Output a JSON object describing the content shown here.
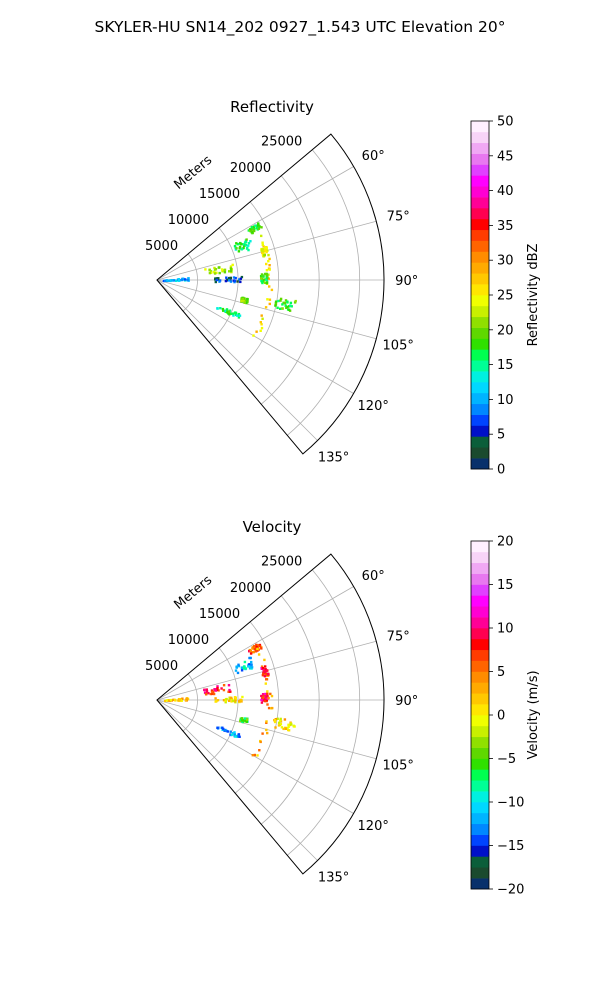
{
  "figure": {
    "suptitle": "SKYLER-HU  SN14_202  0927_1.543 UTC Elevation 20°"
  },
  "chart_data": [
    {
      "type": "heatmap",
      "projection": "polar-sector",
      "title": "Reflectivity",
      "range_label": "Meters",
      "range_ticks": [
        "5000",
        "10000",
        "15000",
        "20000",
        "25000"
      ],
      "range_tick_values": [
        5000,
        10000,
        15000,
        20000,
        25000
      ],
      "range_limit": [
        0,
        28000
      ],
      "azimuth_limit_deg": [
        50,
        140
      ],
      "azimuth_ticks": [
        "60°",
        "75°",
        "90°",
        "105°",
        "120°",
        "135°"
      ],
      "azimuth_tick_values": [
        60,
        75,
        90,
        105,
        120,
        135
      ],
      "grid": true,
      "colorbar": {
        "label": "Reflectivity dBZ",
        "vmin": 0,
        "vmax": 50,
        "ticks": [
          "0",
          "5",
          "10",
          "15",
          "20",
          "25",
          "30",
          "35",
          "40",
          "45",
          "50"
        ],
        "tick_values": [
          0,
          5,
          10,
          15,
          20,
          25,
          30,
          35,
          40,
          45,
          50
        ],
        "colors": [
          "#08306b",
          "#1a4a2e",
          "#0b5e3a",
          "#0010c8",
          "#0044ff",
          "#0088ff",
          "#00b4ff",
          "#00d8ff",
          "#00f0e0",
          "#00ff96",
          "#00ff50",
          "#30e000",
          "#5fd800",
          "#90e000",
          "#c8f000",
          "#f0ff00",
          "#ffe600",
          "#ffc800",
          "#ffaa00",
          "#ff8c00",
          "#ff6400",
          "#ff3c00",
          "#ff0000",
          "#ff0050",
          "#ff0096",
          "#ff00d2",
          "#ff00ff",
          "#e040ff",
          "#e878f0",
          "#f0a8f4",
          "#f8d4f8",
          "#fff0ff"
        ]
      },
      "echoes": [
        {
          "az": [
            84,
            89
          ],
          "r": [
            700,
            3800
          ],
          "value": 10
        },
        {
          "az": [
            76,
            83
          ],
          "r": [
            5800,
            9600
          ],
          "value": 22
        },
        {
          "az": [
            64,
            71
          ],
          "r": [
            10300,
            12600
          ],
          "value": 16
        },
        {
          "az": [
            60,
            63
          ],
          "r": [
            12800,
            14400
          ],
          "value": 18
        },
        {
          "az": [
            87,
            91
          ],
          "r": [
            7000,
            10400
          ],
          "value": 6
        },
        {
          "az": [
            98,
            103
          ],
          "r": [
            14500,
            17200
          ],
          "value": 18
        },
        {
          "az": [
            101,
            104
          ],
          "r": [
            10400,
            11300
          ],
          "value": 20
        },
        {
          "az": [
            112,
            115
          ],
          "r": [
            8000,
            11000
          ],
          "value": 16
        },
        {
          "az": [
            62,
            120
          ],
          "r": [
            13400,
            14100
          ],
          "value": 26
        },
        {
          "az": [
            86,
            91
          ],
          "r": [
            12700,
            13500
          ],
          "value": 18
        },
        {
          "az": [
            72,
            77
          ],
          "r": [
            13300,
            14000
          ],
          "value": 24
        }
      ]
    },
    {
      "type": "heatmap",
      "projection": "polar-sector",
      "title": "Velocity",
      "range_label": "Meters",
      "range_ticks": [
        "5000",
        "10000",
        "15000",
        "20000",
        "25000"
      ],
      "range_tick_values": [
        5000,
        10000,
        15000,
        20000,
        25000
      ],
      "range_limit": [
        0,
        28000
      ],
      "azimuth_limit_deg": [
        50,
        140
      ],
      "azimuth_ticks": [
        "60°",
        "75°",
        "90°",
        "105°",
        "120°",
        "135°"
      ],
      "azimuth_tick_values": [
        60,
        75,
        90,
        105,
        120,
        135
      ],
      "grid": true,
      "colorbar": {
        "label": "Velocity (m/s)",
        "vmin": -20,
        "vmax": 20,
        "ticks": [
          "−20",
          "−15",
          "−10",
          "−5",
          "0",
          "5",
          "10",
          "15",
          "20"
        ],
        "tick_values": [
          -20,
          -15,
          -10,
          -5,
          0,
          5,
          10,
          15,
          20
        ],
        "colors": [
          "#08306b",
          "#1a4a2e",
          "#0b5e3a",
          "#0010c8",
          "#0044ff",
          "#0088ff",
          "#00b4ff",
          "#00d8ff",
          "#00f0e0",
          "#00ff96",
          "#00ff50",
          "#30e000",
          "#5fd800",
          "#90e000",
          "#c8f000",
          "#f0ff00",
          "#ffe600",
          "#ffc800",
          "#ffaa00",
          "#ff8c00",
          "#ff6400",
          "#ff3c00",
          "#ff0000",
          "#ff0050",
          "#ff0096",
          "#ff00d2",
          "#ff00ff",
          "#e040ff",
          "#e878f0",
          "#f0a8f4",
          "#f8d4f8",
          "#fff0ff"
        ]
      },
      "echoes": [
        {
          "az": [
            84,
            89
          ],
          "r": [
            700,
            3800
          ],
          "value": 2
        },
        {
          "az": [
            76,
            83
          ],
          "r": [
            5800,
            9000
          ],
          "value": 8
        },
        {
          "az": [
            64,
            71
          ],
          "r": [
            10300,
            12600
          ],
          "value": -11
        },
        {
          "az": [
            60,
            63
          ],
          "r": [
            12800,
            14400
          ],
          "value": 6
        },
        {
          "az": [
            87,
            91
          ],
          "r": [
            7000,
            10400
          ],
          "value": 1
        },
        {
          "az": [
            86,
            91
          ],
          "r": [
            12700,
            13500
          ],
          "value": 9
        },
        {
          "az": [
            98,
            103
          ],
          "r": [
            14500,
            17200
          ],
          "value": 1
        },
        {
          "az": [
            101,
            104
          ],
          "r": [
            10400,
            11300
          ],
          "value": -6
        },
        {
          "az": [
            112,
            115
          ],
          "r": [
            8000,
            11000
          ],
          "value": -12
        },
        {
          "az": [
            62,
            120
          ],
          "r": [
            13400,
            14100
          ],
          "value": 3
        },
        {
          "az": [
            72,
            77
          ],
          "r": [
            13300,
            14000
          ],
          "value": 9
        }
      ]
    }
  ]
}
